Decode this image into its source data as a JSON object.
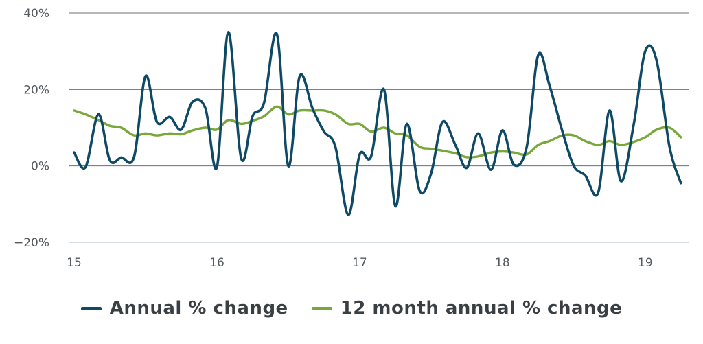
{
  "chart_data": {
    "type": "line",
    "title": "",
    "xlabel": "",
    "ylabel": "",
    "xlim": [
      15,
      19.27
    ],
    "ylim": [
      -20,
      40
    ],
    "y_ticks": [
      {
        "value": 40,
        "label": "40%"
      },
      {
        "value": 20,
        "label": "20%"
      },
      {
        "value": 0,
        "label": "0%"
      },
      {
        "value": -20,
        "label": "−20%"
      }
    ],
    "x_ticks": [
      {
        "value": 15,
        "label": "15"
      },
      {
        "value": 16,
        "label": "16"
      },
      {
        "value": 17,
        "label": "17"
      },
      {
        "value": 18,
        "label": "18"
      },
      {
        "value": 19,
        "label": "19"
      }
    ],
    "grid": "horizontal",
    "legend_position": "bottom-center",
    "series": [
      {
        "name": "Annual % change",
        "color": "#0e4a66",
        "points": [
          [
            15.0,
            3.5
          ],
          [
            15.08,
            -0.3
          ],
          [
            15.17,
            13.5
          ],
          [
            15.25,
            1.5
          ],
          [
            15.33,
            2.2
          ],
          [
            15.42,
            2.4
          ],
          [
            15.5,
            23.5
          ],
          [
            15.58,
            11.5
          ],
          [
            15.67,
            12.8
          ],
          [
            15.75,
            9.5
          ],
          [
            15.83,
            16.8
          ],
          [
            15.92,
            15.0
          ],
          [
            16.0,
            -0.3
          ],
          [
            16.08,
            35.0
          ],
          [
            16.17,
            2.0
          ],
          [
            16.25,
            13.0
          ],
          [
            16.33,
            16.5
          ],
          [
            16.42,
            34.5
          ],
          [
            16.5,
            0.0
          ],
          [
            16.58,
            23.5
          ],
          [
            16.67,
            15.0
          ],
          [
            16.75,
            9.0
          ],
          [
            16.83,
            5.0
          ],
          [
            16.92,
            -12.8
          ],
          [
            17.0,
            3.0
          ],
          [
            17.08,
            2.5
          ],
          [
            17.17,
            20.0
          ],
          [
            17.25,
            -10.5
          ],
          [
            17.33,
            11.0
          ],
          [
            17.42,
            -6.5
          ],
          [
            17.5,
            -2.0
          ],
          [
            17.58,
            11.5
          ],
          [
            17.67,
            5.5
          ],
          [
            17.75,
            -0.5
          ],
          [
            17.83,
            8.5
          ],
          [
            17.92,
            -1.0
          ],
          [
            18.0,
            9.3
          ],
          [
            18.08,
            0.3
          ],
          [
            18.17,
            5.0
          ],
          [
            18.25,
            29.0
          ],
          [
            18.33,
            21.0
          ],
          [
            18.42,
            9.0
          ],
          [
            18.5,
            0.0
          ],
          [
            18.58,
            -2.5
          ],
          [
            18.67,
            -7.0
          ],
          [
            18.75,
            14.5
          ],
          [
            18.83,
            -4.0
          ],
          [
            18.92,
            11.0
          ],
          [
            19.0,
            30.0
          ],
          [
            19.08,
            27.5
          ],
          [
            19.17,
            5.0
          ],
          [
            19.25,
            -4.5
          ]
        ]
      },
      {
        "name": "12 month annual % change",
        "color": "#79a83a",
        "points": [
          [
            15.0,
            14.5
          ],
          [
            15.08,
            13.5
          ],
          [
            15.17,
            12.0
          ],
          [
            15.25,
            10.5
          ],
          [
            15.33,
            10.0
          ],
          [
            15.42,
            8.0
          ],
          [
            15.5,
            8.5
          ],
          [
            15.58,
            8.0
          ],
          [
            15.67,
            8.5
          ],
          [
            15.75,
            8.3
          ],
          [
            15.83,
            9.3
          ],
          [
            15.92,
            10.0
          ],
          [
            16.0,
            9.5
          ],
          [
            16.08,
            12.0
          ],
          [
            16.17,
            11.0
          ],
          [
            16.25,
            11.8
          ],
          [
            16.33,
            13.0
          ],
          [
            16.42,
            15.5
          ],
          [
            16.5,
            13.5
          ],
          [
            16.58,
            14.5
          ],
          [
            16.67,
            14.5
          ],
          [
            16.75,
            14.5
          ],
          [
            16.83,
            13.5
          ],
          [
            16.92,
            11.0
          ],
          [
            17.0,
            11.0
          ],
          [
            17.08,
            9.0
          ],
          [
            17.17,
            10.0
          ],
          [
            17.25,
            8.5
          ],
          [
            17.33,
            8.0
          ],
          [
            17.42,
            5.0
          ],
          [
            17.5,
            4.5
          ],
          [
            17.58,
            4.0
          ],
          [
            17.67,
            3.3
          ],
          [
            17.75,
            2.3
          ],
          [
            17.83,
            2.5
          ],
          [
            17.92,
            3.5
          ],
          [
            18.0,
            3.8
          ],
          [
            18.08,
            3.5
          ],
          [
            18.17,
            3.0
          ],
          [
            18.25,
            5.5
          ],
          [
            18.33,
            6.5
          ],
          [
            18.42,
            8.0
          ],
          [
            18.5,
            8.0
          ],
          [
            18.58,
            6.5
          ],
          [
            18.67,
            5.5
          ],
          [
            18.75,
            6.5
          ],
          [
            18.83,
            5.5
          ],
          [
            18.92,
            6.3
          ],
          [
            19.0,
            7.5
          ],
          [
            19.08,
            9.5
          ],
          [
            19.17,
            10.0
          ],
          [
            19.25,
            7.5
          ]
        ]
      }
    ]
  }
}
